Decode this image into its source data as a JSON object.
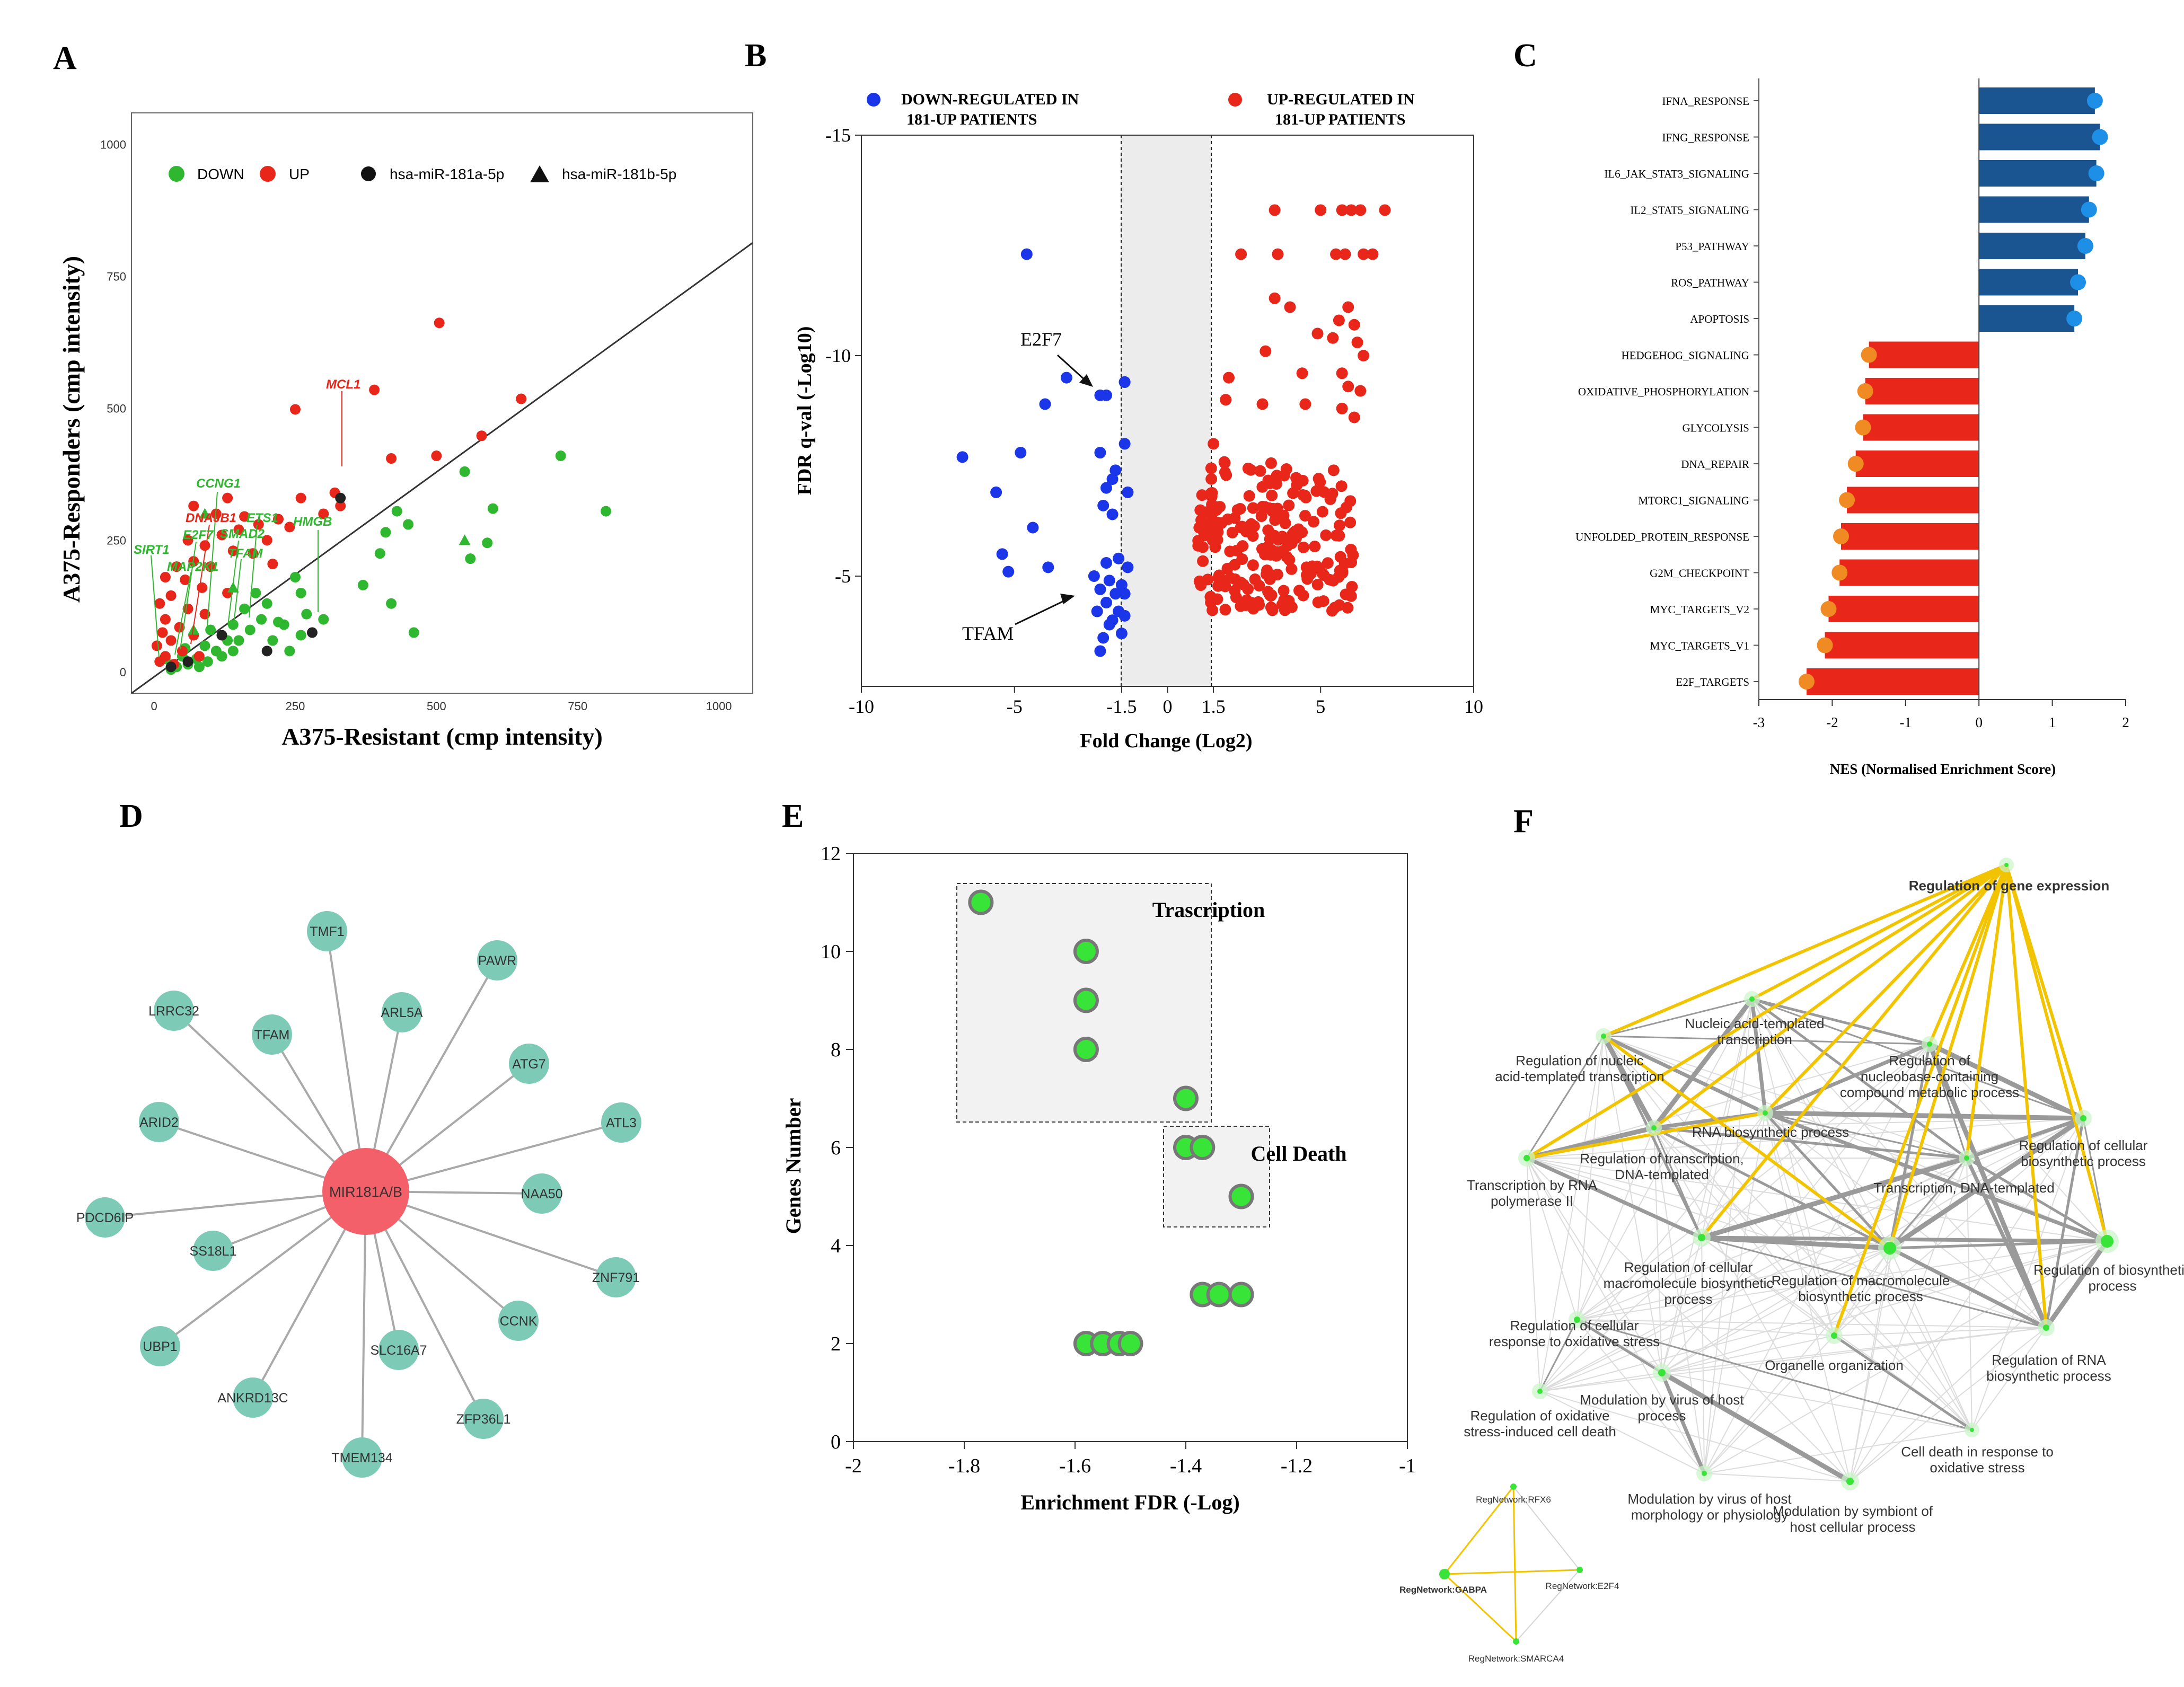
{
  "panels": {
    "a": "A",
    "b": "B",
    "c": "C",
    "d": "D",
    "e": "E",
    "f": "F"
  },
  "colors": {
    "down": "#2fb82f",
    "up": "#e8261a",
    "blue": "#1b35e8",
    "navy": "#1a5592",
    "orange": "#f08a22",
    "lightblue": "#1e8fe6",
    "teal": "#7dcbb7",
    "hub": "#f4606a",
    "green": "#39e439",
    "gold": "#f2c400",
    "grey": "#9a9a9a"
  },
  "chart_data": [
    {
      "type": "scatter",
      "id": "A",
      "xlabel": "A375-Resistant (cmp intensity)",
      "ylabel": "A375-Responders (cmp intensity)",
      "xlim": [
        -40,
        1060
      ],
      "ylim": [
        -40,
        1060
      ],
      "xticks": [
        "0",
        "250",
        "500",
        "750",
        "1000"
      ],
      "yticks": [
        "0",
        "250",
        "500",
        "750",
        "1000"
      ],
      "legend": {
        "down": "DOWN",
        "up": "UP",
        "mir_a": "hsa-miR-181a-5p",
        "mir_b": "hsa-miR-181b-5p"
      },
      "gene_labels": {
        "mcl1": "MCL1",
        "ccng1": "CCNG1",
        "dnajb1": "DNAJB1",
        "ets1": "ETS1",
        "e2f7": "E2F7",
        "smad2": "SMAD2",
        "hmgb": "HMGB",
        "sirt1": "SIRT1",
        "map2k1": "MAP2K1",
        "tfam": "TFAM"
      },
      "up_points": [
        [
          505,
          662
        ],
        [
          390,
          535
        ],
        [
          650,
          518
        ],
        [
          250,
          498
        ],
        [
          580,
          448
        ],
        [
          500,
          410
        ],
        [
          420,
          405
        ],
        [
          260,
          330
        ],
        [
          320,
          340
        ],
        [
          330,
          315
        ],
        [
          300,
          300
        ],
        [
          220,
          290
        ],
        [
          240,
          275
        ],
        [
          130,
          330
        ],
        [
          70,
          315
        ],
        [
          110,
          300
        ],
        [
          160,
          295
        ],
        [
          185,
          280
        ],
        [
          150,
          270
        ],
        [
          200,
          250
        ],
        [
          120,
          260
        ],
        [
          60,
          250
        ],
        [
          90,
          240
        ],
        [
          140,
          230
        ],
        [
          175,
          225
        ],
        [
          210,
          205
        ],
        [
          100,
          200
        ],
        [
          70,
          210
        ],
        [
          40,
          200
        ],
        [
          20,
          180
        ],
        [
          55,
          175
        ],
        [
          85,
          160
        ],
        [
          130,
          150
        ],
        [
          30,
          145
        ],
        [
          10,
          130
        ],
        [
          60,
          120
        ],
        [
          90,
          110
        ],
        [
          20,
          100
        ],
        [
          45,
          85
        ],
        [
          15,
          75
        ],
        [
          70,
          70
        ],
        [
          30,
          60
        ],
        [
          5,
          50
        ],
        [
          50,
          40
        ],
        [
          20,
          30
        ],
        [
          80,
          30
        ],
        [
          10,
          20
        ],
        [
          35,
          15
        ]
      ],
      "down_points": [
        [
          720,
          410
        ],
        [
          800,
          305
        ],
        [
          550,
          380
        ],
        [
          600,
          310
        ],
        [
          590,
          245
        ],
        [
          560,
          215
        ],
        [
          430,
          305
        ],
        [
          450,
          280
        ],
        [
          410,
          265
        ],
        [
          400,
          225
        ],
        [
          370,
          165
        ],
        [
          420,
          130
        ],
        [
          460,
          75
        ],
        [
          250,
          180
        ],
        [
          270,
          110
        ],
        [
          300,
          100
        ],
        [
          260,
          70
        ],
        [
          220,
          95
        ],
        [
          200,
          130
        ],
        [
          180,
          150
        ],
        [
          160,
          120
        ],
        [
          140,
          90
        ],
        [
          130,
          60
        ],
        [
          110,
          40
        ],
        [
          100,
          80
        ],
        [
          90,
          50
        ],
        [
          75,
          25
        ],
        [
          60,
          15
        ],
        [
          50,
          30
        ],
        [
          40,
          10
        ],
        [
          150,
          60
        ],
        [
          170,
          80
        ],
        [
          190,
          100
        ],
        [
          120,
          30
        ],
        [
          80,
          10
        ],
        [
          30,
          5
        ],
        [
          20,
          25
        ],
        [
          210,
          60
        ],
        [
          230,
          90
        ],
        [
          55,
          45
        ],
        [
          95,
          20
        ],
        [
          140,
          40
        ],
        [
          240,
          40
        ],
        [
          260,
          150
        ]
      ],
      "mir_a_points": [
        [
          330,
          330
        ],
        [
          280,
          75
        ],
        [
          120,
          70
        ],
        [
          60,
          20
        ],
        [
          30,
          10
        ],
        [
          200,
          40
        ]
      ],
      "mir_b_points": [
        [
          550,
          250
        ],
        [
          90,
          300
        ],
        [
          140,
          160
        ],
        [
          70,
          80
        ]
      ]
    },
    {
      "type": "scatter",
      "id": "B",
      "xlabel": "Fold Change (Log2)",
      "ylabel": "FDR q-val (-Log10)",
      "xlim": [
        -10,
        10
      ],
      "ylim": [
        -15,
        -2.5
      ],
      "xticks": [
        "-10",
        "-5",
        "-1.5",
        "0",
        "1.5",
        "5",
        "10"
      ],
      "yticks": [
        "-15",
        "-10",
        "-5"
      ],
      "legend": {
        "down": "DOWN-REGULATED IN",
        "up": "UP-REGULATED IN",
        "patients": "181-UP PATIENTS"
      },
      "annotations": {
        "e2f7": "E2F7",
        "tfam": "TFAM"
      },
      "down_points": [
        [
          -4.6,
          -12.3
        ],
        [
          -3.3,
          -9.5
        ],
        [
          -2.2,
          -9.1
        ],
        [
          -2.0,
          -9.1
        ],
        [
          -1.4,
          -9.4
        ],
        [
          -1.4,
          -9.4
        ],
        [
          -4.0,
          -8.9
        ],
        [
          -6.7,
          -7.7
        ],
        [
          -4.8,
          -7.8
        ],
        [
          -2.2,
          -7.8
        ],
        [
          -1.4,
          -8.0
        ],
        [
          -1.7,
          -7.4
        ],
        [
          -1.8,
          -7.2
        ],
        [
          -2.0,
          -7.0
        ],
        [
          -1.3,
          -6.9
        ],
        [
          -5.6,
          -6.9
        ],
        [
          -2.1,
          -6.6
        ],
        [
          -1.8,
          -6.4
        ],
        [
          -4.4,
          -6.1
        ],
        [
          -5.4,
          -5.5
        ],
        [
          -3.9,
          -5.2
        ],
        [
          -5.2,
          -5.1
        ],
        [
          -2.0,
          -5.3
        ],
        [
          -1.6,
          -5.4
        ],
        [
          -1.3,
          -5.2
        ],
        [
          -2.4,
          -5.0
        ],
        [
          -1.9,
          -4.9
        ],
        [
          -1.5,
          -4.8
        ],
        [
          -2.2,
          -4.7
        ],
        [
          -1.7,
          -4.6
        ],
        [
          -1.4,
          -4.6
        ],
        [
          -2.0,
          -4.4
        ],
        [
          -1.6,
          -4.2
        ],
        [
          -2.3,
          -4.2
        ],
        [
          -1.8,
          -4.0
        ],
        [
          -1.4,
          -4.1
        ],
        [
          -1.9,
          -3.9
        ],
        [
          -2.1,
          -3.6
        ],
        [
          -1.5,
          -3.7
        ],
        [
          -2.2,
          -3.3
        ]
      ],
      "up_points": [
        [
          3.5,
          -13.3
        ],
        [
          5.0,
          -13.3
        ],
        [
          5.7,
          -13.3
        ],
        [
          6.0,
          -13.3
        ],
        [
          6.3,
          -13.3
        ],
        [
          7.1,
          -13.3
        ],
        [
          2.4,
          -12.3
        ],
        [
          3.6,
          -12.3
        ],
        [
          5.5,
          -12.3
        ],
        [
          5.8,
          -12.3
        ],
        [
          6.4,
          -12.3
        ],
        [
          6.7,
          -12.3
        ],
        [
          3.5,
          -11.3
        ],
        [
          4.0,
          -11.1
        ],
        [
          5.9,
          -11.1
        ],
        [
          5.6,
          -10.8
        ],
        [
          6.1,
          -10.7
        ],
        [
          4.9,
          -10.5
        ],
        [
          3.2,
          -10.1
        ],
        [
          5.4,
          -10.4
        ],
        [
          6.2,
          -10.3
        ],
        [
          6.4,
          -10.0
        ],
        [
          5.7,
          -9.6
        ],
        [
          2.0,
          -9.5
        ],
        [
          4.4,
          -9.6
        ],
        [
          5.9,
          -9.3
        ],
        [
          6.3,
          -9.2
        ],
        [
          1.9,
          -9.0
        ],
        [
          3.1,
          -8.9
        ],
        [
          4.5,
          -8.9
        ],
        [
          5.7,
          -8.8
        ],
        [
          6.1,
          -8.6
        ],
        [
          1.5,
          -8.0
        ]
      ],
      "up_cluster": {
        "x_range": [
          1.0,
          6.2
        ],
        "y_range": [
          -7.6,
          -4.2
        ],
        "count": 220,
        "seed": 7
      }
    },
    {
      "type": "bar",
      "id": "C",
      "orientation": "horizontal",
      "xlabel": "NES (Normalised Enrichment Score)",
      "xlim": [
        -3,
        2
      ],
      "xticks": [
        "-3",
        "-2",
        "-1",
        "0",
        "1",
        "2"
      ],
      "categories": [
        "IFNA_RESPONSE",
        "IFNG_RESPONSE",
        "IL6_JAK_STAT3_SIGNALING",
        "IL2_STAT5_SIGNALING",
        "P53_PATHWAY",
        "ROS_PATHWAY",
        "APOPTOSIS",
        "HEDGEHOG_SIGNALING",
        "OXIDATIVE_PHOSPHORYLATION",
        "GLYCOLYSIS",
        "DNA_REPAIR",
        "MTORC1_SIGNALING",
        "UNFOLDED_PROTEIN_RESPONSE",
        "G2M_CHECKPOINT",
        "MYC_TARGETS_V2",
        "MYC_TARGETS_V1",
        "E2F_TARGETS"
      ],
      "values": [
        1.58,
        1.65,
        1.6,
        1.5,
        1.45,
        1.35,
        1.3,
        -1.5,
        -1.55,
        -1.58,
        -1.68,
        -1.8,
        -1.88,
        -1.9,
        -2.05,
        -2.1,
        -2.35
      ]
    },
    {
      "type": "network",
      "id": "D",
      "hub": "MIR181A/B",
      "nodes": [
        "TMF1",
        "PAWR",
        "LRRC32",
        "TFAM",
        "ARL5A",
        "ATG7",
        "ARID2",
        "ATL3",
        "NAA50",
        "PDCD6IP",
        "SS18L1",
        "ZNF791",
        "UBP1",
        "CCNK",
        "SLC16A7",
        "ANKRD13C",
        "ZFP36L1",
        "TMEM134"
      ]
    },
    {
      "type": "scatter",
      "id": "E",
      "xlabel": "Enrichment FDR (-Log)",
      "ylabel": "Genes Number",
      "xlim": [
        -2,
        -1
      ],
      "ylim": [
        0,
        12
      ],
      "xticks": [
        "-2",
        "-1.8",
        "-1.6",
        "-1.4",
        "-1.2",
        "-1"
      ],
      "yticks": [
        "0",
        "2",
        "4",
        "6",
        "8",
        "10",
        "12"
      ],
      "groups": {
        "transcription": "Trascription",
        "cell_death": "Cell Death"
      },
      "points": [
        [
          -1.77,
          11
        ],
        [
          -1.58,
          10
        ],
        [
          -1.58,
          9
        ],
        [
          -1.58,
          8
        ],
        [
          -1.4,
          7
        ],
        [
          -1.4,
          6
        ],
        [
          -1.37,
          6
        ],
        [
          -1.3,
          5
        ],
        [
          -1.37,
          3
        ],
        [
          -1.34,
          3
        ],
        [
          -1.3,
          3
        ],
        [
          -1.58,
          2
        ],
        [
          -1.55,
          2
        ],
        [
          -1.52,
          2
        ],
        [
          -1.5,
          2
        ]
      ]
    },
    {
      "type": "network",
      "id": "F",
      "nodes": [
        "Regulation of gene expression",
        "Nucleic acid-templated transcription",
        "Regulation of nucleic acid-templated transcription",
        "Regulation of nucleobase-containing compound metabolic process",
        "RNA biosynthetic process",
        "Regulation of transcription, DNA-templated",
        "Regulation of cellular biosynthetic process",
        "Transcription by RNA polymerase II",
        "Transcription, DNA-templated",
        "Regulation of cellular macromolecule biosynthetic process",
        "Regulation of macromolecule biosynthetic process",
        "Regulation of biosynthetic process",
        "Regulation of cellular response to oxidative stress",
        "Organelle organization",
        "Regulation of RNA biosynthetic process",
        "Regulation of oxidative stress-induced cell death",
        "Modulation by virus of host process",
        "Cell death in response to oxidative stress",
        "Modulation by virus of host morphology or physiology",
        "Modulation by symbiont of host cellular process"
      ],
      "regnet": [
        "RegNetwork:RFX6",
        "RegNetwork:GABPA",
        "RegNetwork:E2F4",
        "RegNetwork:SMARCA4"
      ]
    }
  ]
}
